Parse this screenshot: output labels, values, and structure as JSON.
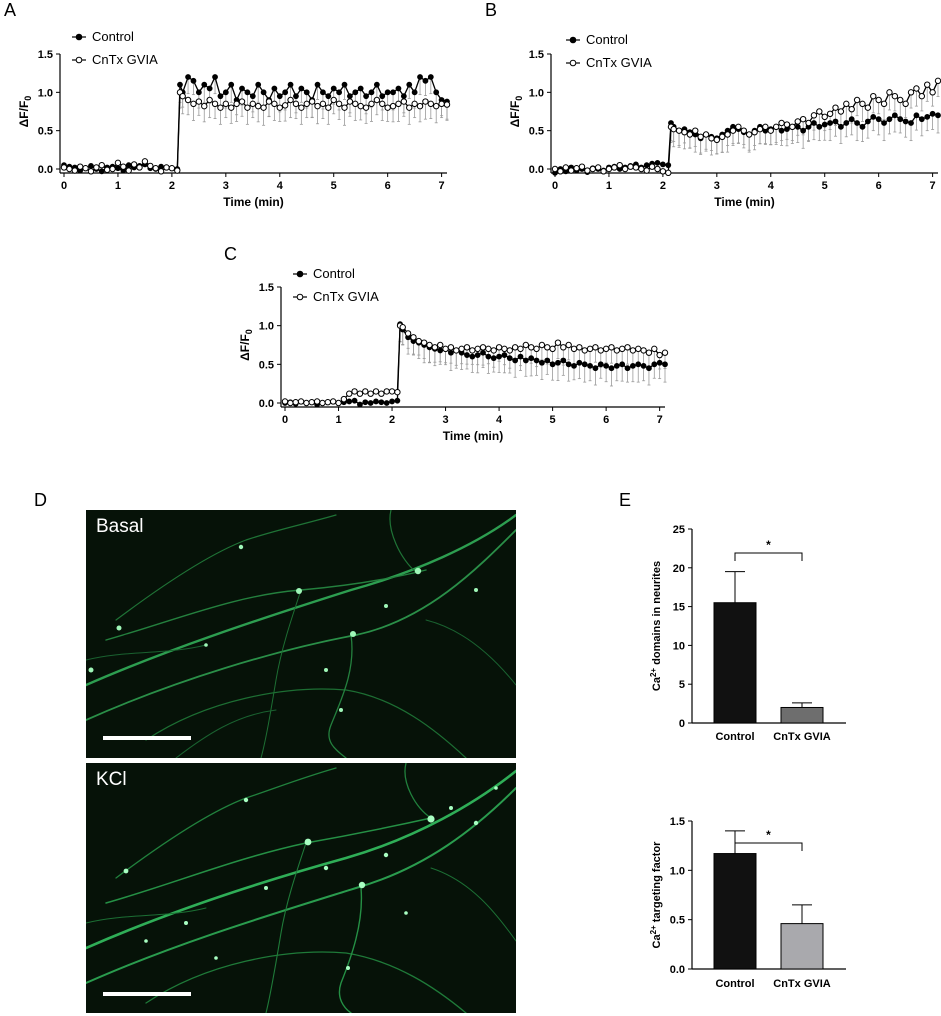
{
  "panels": {
    "A": {
      "letter": "A"
    },
    "B": {
      "letter": "B"
    },
    "C": {
      "letter": "C"
    },
    "D": {
      "letter": "D"
    },
    "E": {
      "letter": "E"
    }
  },
  "microscopy": {
    "top_label": "Basal",
    "bottom_label": "KCl",
    "neurite_color": "#3ecf6a",
    "background_color": "#061208"
  },
  "chart_data": [
    {
      "id": "A",
      "type": "line",
      "title": "",
      "xlabel": "Time (min)",
      "ylabel": "ΔF/F0",
      "xlim": [
        0,
        7.1
      ],
      "ylim": [
        0,
        1.5
      ],
      "xticks": [
        "0",
        "1",
        "2",
        "3",
        "4",
        "5",
        "6",
        "7"
      ],
      "yticks": [
        "0.0",
        "0.5",
        "1.0",
        "1.5"
      ],
      "legend_position": "top-left",
      "series": [
        {
          "name": "Control",
          "marker": "filled",
          "x": [
            0,
            0.1,
            0.2,
            0.3,
            0.4,
            0.5,
            0.6,
            0.7,
            0.8,
            0.9,
            1.0,
            1.1,
            1.2,
            1.3,
            1.4,
            1.5,
            1.6,
            1.7,
            1.8,
            1.9,
            2.0,
            2.1,
            2.15,
            2.2,
            2.3,
            2.4,
            2.5,
            2.6,
            2.7,
            2.8,
            2.9,
            3.0,
            3.1,
            3.2,
            3.3,
            3.4,
            3.5,
            3.6,
            3.7,
            3.8,
            3.9,
            4.0,
            4.1,
            4.2,
            4.3,
            4.4,
            4.5,
            4.6,
            4.7,
            4.8,
            4.9,
            5.0,
            5.1,
            5.2,
            5.3,
            5.4,
            5.5,
            5.6,
            5.7,
            5.8,
            5.9,
            6.0,
            6.1,
            6.2,
            6.3,
            6.4,
            6.5,
            6.6,
            6.7,
            6.8,
            6.9,
            7.0,
            7.1
          ],
          "y": [
            0.05,
            0.03,
            0.02,
            -0.02,
            0.01,
            0.04,
            0.0,
            -0.03,
            0.02,
            0.03,
            0.01,
            -0.02,
            0.05,
            0.02,
            0.04,
            0.06,
            0.01,
            0.0,
            0.03,
            0.02,
            0.01,
            0.0,
            1.1,
            1.0,
            1.2,
            1.15,
            1.0,
            1.1,
            1.05,
            1.2,
            0.95,
            1.0,
            1.1,
            0.9,
            1.05,
            1.0,
            0.95,
            1.1,
            1.0,
            0.9,
            1.05,
            0.95,
            1.0,
            1.1,
            0.95,
            1.05,
            1.0,
            0.9,
            1.1,
            1.0,
            0.95,
            1.05,
            1.0,
            1.1,
            0.95,
            1.0,
            1.05,
            0.95,
            1.0,
            1.1,
            0.95,
            1.0,
            1.0,
            1.05,
            0.95,
            1.1,
            1.0,
            1.2,
            1.15,
            1.2,
            1.0,
            0.9,
            0.88
          ]
        },
        {
          "name": "CnTx GVIA",
          "marker": "open",
          "x": [
            0,
            0.1,
            0.2,
            0.3,
            0.4,
            0.5,
            0.6,
            0.7,
            0.8,
            0.9,
            1.0,
            1.1,
            1.2,
            1.3,
            1.4,
            1.5,
            1.6,
            1.7,
            1.8,
            1.9,
            2.0,
            2.1,
            2.15,
            2.2,
            2.3,
            2.4,
            2.5,
            2.6,
            2.7,
            2.8,
            2.9,
            3.0,
            3.1,
            3.2,
            3.3,
            3.4,
            3.5,
            3.6,
            3.7,
            3.8,
            3.9,
            4.0,
            4.1,
            4.2,
            4.3,
            4.4,
            4.5,
            4.6,
            4.7,
            4.8,
            4.9,
            5.0,
            5.1,
            5.2,
            5.3,
            5.4,
            5.5,
            5.6,
            5.7,
            5.8,
            5.9,
            6.0,
            6.1,
            6.2,
            6.3,
            6.4,
            6.5,
            6.6,
            6.7,
            6.8,
            6.9,
            7.0,
            7.1
          ],
          "y": [
            0.02,
            0.0,
            -0.02,
            0.03,
            0.01,
            -0.03,
            0.02,
            0.05,
            -0.01,
            0.0,
            0.08,
            0.03,
            -0.02,
            0.06,
            0.02,
            0.1,
            0.04,
            0.01,
            -0.03,
            0.02,
            0.01,
            -0.02,
            1.0,
            0.95,
            0.9,
            0.85,
            0.88,
            0.82,
            0.9,
            0.85,
            0.8,
            0.85,
            0.8,
            0.85,
            0.88,
            0.8,
            0.85,
            0.82,
            0.8,
            0.88,
            0.85,
            0.8,
            0.83,
            0.9,
            0.85,
            0.8,
            0.85,
            0.88,
            0.82,
            0.85,
            0.8,
            0.9,
            0.85,
            0.8,
            0.88,
            0.85,
            0.82,
            0.8,
            0.85,
            0.9,
            0.85,
            0.8,
            0.82,
            0.85,
            0.88,
            0.8,
            0.85,
            0.82,
            0.88,
            0.85,
            0.82,
            0.85,
            0.84
          ]
        }
      ]
    },
    {
      "id": "B",
      "type": "line",
      "title": "",
      "xlabel": "Time (min)",
      "ylabel": "ΔF/F0",
      "xlim": [
        0,
        7.1
      ],
      "ylim": [
        0,
        1.5
      ],
      "xticks": [
        "0",
        "1",
        "2",
        "3",
        "4",
        "5",
        "6",
        "7"
      ],
      "yticks": [
        "0.0",
        "0.5",
        "1.0",
        "1.5"
      ],
      "legend_position": "top-left",
      "series": [
        {
          "name": "Control",
          "marker": "filled",
          "x": [
            0,
            0.1,
            0.2,
            0.3,
            0.4,
            0.5,
            0.6,
            0.7,
            0.8,
            0.9,
            1.0,
            1.1,
            1.2,
            1.3,
            1.4,
            1.5,
            1.6,
            1.7,
            1.8,
            1.9,
            2.0,
            2.1,
            2.15,
            2.2,
            2.3,
            2.4,
            2.5,
            2.6,
            2.7,
            2.8,
            2.9,
            3.0,
            3.1,
            3.2,
            3.3,
            3.4,
            3.5,
            3.6,
            3.7,
            3.8,
            3.9,
            4.0,
            4.1,
            4.2,
            4.3,
            4.4,
            4.5,
            4.6,
            4.7,
            4.8,
            4.9,
            5.0,
            5.1,
            5.2,
            5.3,
            5.4,
            5.5,
            5.6,
            5.7,
            5.8,
            5.9,
            6.0,
            6.1,
            6.2,
            6.3,
            6.4,
            6.5,
            6.6,
            6.7,
            6.8,
            6.9,
            7.0,
            7.1
          ],
          "y": [
            -0.05,
            0.0,
            -0.03,
            0.02,
            -0.02,
            0.0,
            -0.04,
            0.01,
            0.0,
            -0.02,
            0.02,
            0.03,
            0.0,
            0.02,
            0.04,
            0.06,
            0.02,
            0.05,
            0.07,
            0.08,
            0.06,
            0.05,
            0.6,
            0.55,
            0.5,
            0.52,
            0.48,
            0.45,
            0.4,
            0.45,
            0.42,
            0.4,
            0.45,
            0.5,
            0.55,
            0.52,
            0.48,
            0.45,
            0.5,
            0.55,
            0.5,
            0.52,
            0.55,
            0.5,
            0.52,
            0.55,
            0.55,
            0.5,
            0.55,
            0.6,
            0.55,
            0.58,
            0.6,
            0.62,
            0.55,
            0.6,
            0.65,
            0.6,
            0.55,
            0.62,
            0.68,
            0.65,
            0.6,
            0.65,
            0.7,
            0.65,
            0.62,
            0.6,
            0.7,
            0.65,
            0.68,
            0.72,
            0.7
          ]
        },
        {
          "name": "CnTx GVIA",
          "marker": "open",
          "x": [
            0,
            0.1,
            0.2,
            0.3,
            0.4,
            0.5,
            0.6,
            0.7,
            0.8,
            0.9,
            1.0,
            1.1,
            1.2,
            1.3,
            1.4,
            1.5,
            1.6,
            1.7,
            1.8,
            1.9,
            2.0,
            2.1,
            2.15,
            2.2,
            2.3,
            2.4,
            2.5,
            2.6,
            2.7,
            2.8,
            2.9,
            3.0,
            3.1,
            3.2,
            3.3,
            3.4,
            3.5,
            3.6,
            3.7,
            3.8,
            3.9,
            4.0,
            4.1,
            4.2,
            4.3,
            4.4,
            4.5,
            4.6,
            4.7,
            4.8,
            4.9,
            5.0,
            5.1,
            5.2,
            5.3,
            5.4,
            5.5,
            5.6,
            5.7,
            5.8,
            5.9,
            6.0,
            6.1,
            6.2,
            6.3,
            6.4,
            6.5,
            6.6,
            6.7,
            6.8,
            6.9,
            7.0,
            7.1
          ],
          "y": [
            0.0,
            -0.03,
            0.02,
            -0.02,
            0.01,
            0.03,
            -0.02,
            0.0,
            0.02,
            -0.03,
            0.0,
            0.02,
            0.05,
            0.0,
            0.03,
            0.02,
            0.0,
            -0.02,
            0.03,
            0.0,
            -0.03,
            -0.05,
            0.55,
            0.52,
            0.5,
            0.48,
            0.45,
            0.5,
            0.42,
            0.45,
            0.4,
            0.38,
            0.42,
            0.45,
            0.5,
            0.55,
            0.5,
            0.45,
            0.48,
            0.52,
            0.55,
            0.5,
            0.55,
            0.6,
            0.58,
            0.55,
            0.62,
            0.65,
            0.6,
            0.7,
            0.75,
            0.68,
            0.72,
            0.8,
            0.75,
            0.85,
            0.78,
            0.9,
            0.85,
            0.8,
            0.95,
            0.9,
            0.85,
            1.0,
            0.95,
            0.9,
            0.85,
            1.0,
            1.05,
            0.95,
            1.1,
            1.0,
            1.15
          ]
        }
      ]
    },
    {
      "id": "C",
      "type": "line",
      "title": "",
      "xlabel": "Time (min)",
      "ylabel": "ΔF/F0",
      "xlim": [
        0,
        7.1
      ],
      "ylim": [
        0,
        1.5
      ],
      "xticks": [
        "0",
        "1",
        "2",
        "3",
        "4",
        "5",
        "6",
        "7"
      ],
      "yticks": [
        "0.0",
        "0.5",
        "1.0",
        "1.5"
      ],
      "legend_position": "top-left",
      "series": [
        {
          "name": "Control",
          "marker": "filled",
          "x": [
            0,
            0.1,
            0.2,
            0.3,
            0.4,
            0.5,
            0.6,
            0.7,
            0.8,
            0.9,
            1.0,
            1.1,
            1.2,
            1.3,
            1.4,
            1.5,
            1.6,
            1.7,
            1.8,
            1.9,
            2.0,
            2.1,
            2.15,
            2.2,
            2.3,
            2.4,
            2.5,
            2.6,
            2.7,
            2.8,
            2.9,
            3.0,
            3.1,
            3.2,
            3.3,
            3.4,
            3.5,
            3.6,
            3.7,
            3.8,
            3.9,
            4.0,
            4.1,
            4.2,
            4.3,
            4.4,
            4.5,
            4.6,
            4.7,
            4.8,
            4.9,
            5.0,
            5.1,
            5.2,
            5.3,
            5.4,
            5.5,
            5.6,
            5.7,
            5.8,
            5.9,
            6.0,
            6.1,
            6.2,
            6.3,
            6.4,
            6.5,
            6.6,
            6.7,
            6.8,
            6.9,
            7.0,
            7.1
          ],
          "y": [
            0.0,
            0.01,
            -0.01,
            0.02,
            0.0,
            0.01,
            -0.02,
            0.0,
            0.01,
            0.02,
            0.0,
            0.01,
            0.02,
            0.03,
            -0.02,
            0.01,
            0.0,
            0.02,
            0.01,
            0.0,
            0.02,
            0.03,
            1.02,
            0.95,
            0.85,
            0.8,
            0.78,
            0.75,
            0.72,
            0.7,
            0.68,
            0.7,
            0.65,
            0.68,
            0.65,
            0.62,
            0.6,
            0.62,
            0.65,
            0.6,
            0.58,
            0.6,
            0.62,
            0.58,
            0.55,
            0.6,
            0.55,
            0.58,
            0.55,
            0.52,
            0.55,
            0.5,
            0.52,
            0.55,
            0.5,
            0.48,
            0.52,
            0.5,
            0.48,
            0.45,
            0.5,
            0.48,
            0.45,
            0.48,
            0.5,
            0.45,
            0.48,
            0.5,
            0.48,
            0.45,
            0.5,
            0.52,
            0.5
          ]
        },
        {
          "name": "CnTx GVIA",
          "marker": "open",
          "x": [
            0,
            0.1,
            0.2,
            0.3,
            0.4,
            0.5,
            0.6,
            0.7,
            0.8,
            0.9,
            1.0,
            1.1,
            1.2,
            1.3,
            1.4,
            1.5,
            1.6,
            1.7,
            1.8,
            1.9,
            2.0,
            2.1,
            2.15,
            2.2,
            2.3,
            2.4,
            2.5,
            2.6,
            2.7,
            2.8,
            2.9,
            3.0,
            3.1,
            3.2,
            3.3,
            3.4,
            3.5,
            3.6,
            3.7,
            3.8,
            3.9,
            4.0,
            4.1,
            4.2,
            4.3,
            4.4,
            4.5,
            4.6,
            4.7,
            4.8,
            4.9,
            5.0,
            5.1,
            5.2,
            5.3,
            5.4,
            5.5,
            5.6,
            5.7,
            5.8,
            5.9,
            6.0,
            6.1,
            6.2,
            6.3,
            6.4,
            6.5,
            6.6,
            6.7,
            6.8,
            6.9,
            7.0,
            7.1
          ],
          "y": [
            0.02,
            0.0,
            0.01,
            0.02,
            0.0,
            0.01,
            0.02,
            0.0,
            0.01,
            0.02,
            0.0,
            0.05,
            0.12,
            0.15,
            0.12,
            0.15,
            0.12,
            0.15,
            0.12,
            0.15,
            0.15,
            0.14,
            1.0,
            0.98,
            0.9,
            0.85,
            0.8,
            0.78,
            0.75,
            0.72,
            0.75,
            0.7,
            0.72,
            0.68,
            0.7,
            0.72,
            0.68,
            0.7,
            0.72,
            0.7,
            0.68,
            0.72,
            0.7,
            0.68,
            0.72,
            0.7,
            0.75,
            0.72,
            0.7,
            0.75,
            0.72,
            0.7,
            0.78,
            0.72,
            0.75,
            0.7,
            0.72,
            0.68,
            0.7,
            0.72,
            0.68,
            0.7,
            0.72,
            0.68,
            0.7,
            0.72,
            0.68,
            0.7,
            0.68,
            0.65,
            0.7,
            0.62,
            0.65
          ]
        }
      ]
    },
    {
      "id": "E1",
      "type": "bar",
      "title": "",
      "xlabel": "",
      "ylabel": "Ca2+ domains in neurites",
      "ylim": [
        0,
        25
      ],
      "yticks": [
        "0",
        "5",
        "10",
        "15",
        "20",
        "25"
      ],
      "categories": [
        "Control",
        "CnTx GVIA"
      ],
      "values": [
        15.5,
        2.0
      ],
      "errors": [
        4.0,
        0.6
      ],
      "bar_colors": [
        "#111111",
        "#6e6e6e"
      ],
      "significance": "*"
    },
    {
      "id": "E2",
      "type": "bar",
      "title": "",
      "xlabel": "",
      "ylabel": "Ca2+ targeting factor",
      "ylim": [
        0,
        1.5
      ],
      "yticks": [
        "0.0",
        "0.5",
        "1.0",
        "1.5"
      ],
      "categories": [
        "Control",
        "CnTx GVIA"
      ],
      "values": [
        1.17,
        0.46
      ],
      "errors": [
        0.23,
        0.19
      ],
      "bar_colors": [
        "#111111",
        "#a9a9ad"
      ],
      "significance": "*"
    }
  ]
}
